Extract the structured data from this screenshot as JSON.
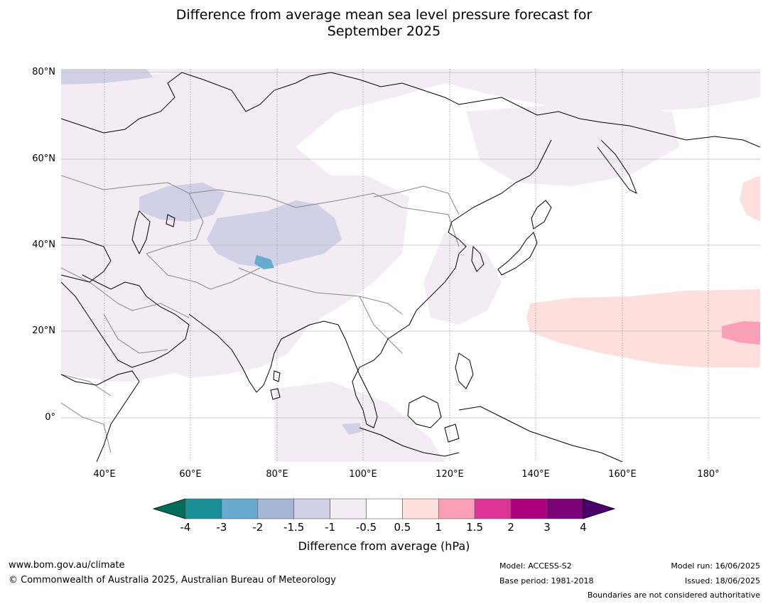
{
  "title_line1": "Difference from average mean sea level pressure forecast for",
  "title_line2": "September 2025",
  "lat_labels": [
    "80°N",
    "60°N",
    "40°N",
    "20°N",
    "0°"
  ],
  "lon_labels": [
    "40°E",
    "60°E",
    "80°E",
    "100°E",
    "120°E",
    "140°E",
    "160°E",
    "180°"
  ],
  "colorbar": {
    "ticks": [
      "-4",
      "-3",
      "-2",
      "-1.5",
      "-1",
      "-0.5",
      "0.5",
      "1",
      "1.5",
      "2",
      "3",
      "4"
    ],
    "colors": [
      "#1a8f95",
      "#67a9cf",
      "#a6b7d6",
      "#d0d1e6",
      "#f3ecf5",
      "#ffffff",
      "#fde0dd",
      "#fa9fb5",
      "#dd3497",
      "#ae017e",
      "#7a0177"
    ],
    "low_extend_color": "#016c59",
    "high_extend_color": "#49006a",
    "label": "Difference from average (hPa)"
  },
  "footer": {
    "website": "www.bom.gov.au/climate",
    "copyright": "© Commonwealth of Australia 2025, Australian Bureau of Meteorology",
    "model": "Model: ACCESS-S2",
    "base_period": "Base period: 1981-2018",
    "model_run": "Model run: 16/06/2025",
    "issued": "Issued: 18/06/2025",
    "disclaimer": "Boundaries are not considered authoritative"
  }
}
